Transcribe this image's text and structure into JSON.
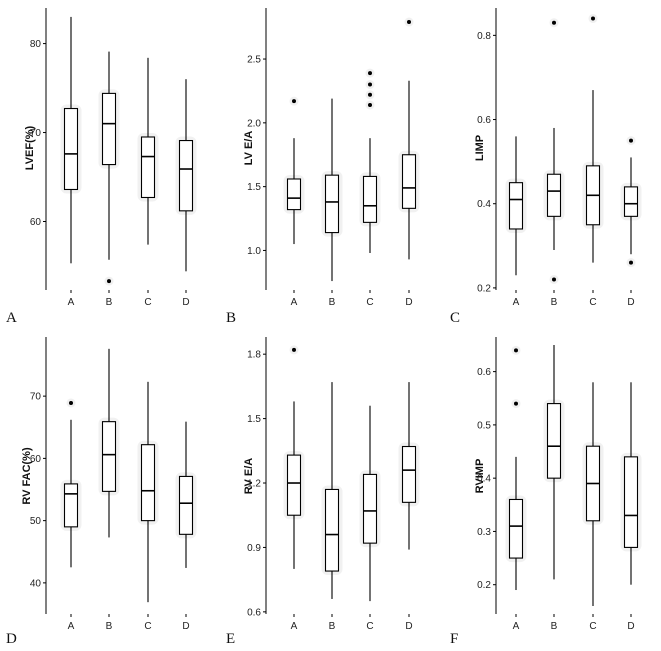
{
  "chart_data": [
    {
      "type": "box",
      "panel": "A",
      "ylabel": "LVEF(%)",
      "categories": [
        "A",
        "B",
        "C",
        "D"
      ],
      "yticks": [
        60,
        70,
        80
      ],
      "ylim": [
        52.3,
        84.0
      ],
      "boxes": [
        {
          "cat": "A",
          "whisker_low": 55.3,
          "q1": 63.6,
          "median": 67.6,
          "q3": 72.7,
          "whisker_high": 83.0,
          "outliers": []
        },
        {
          "cat": "B",
          "whisker_low": 55.7,
          "q1": 66.4,
          "median": 71.0,
          "q3": 74.4,
          "whisker_high": 79.1,
          "outliers": [
            53.3
          ]
        },
        {
          "cat": "C",
          "whisker_low": 57.4,
          "q1": 62.7,
          "median": 67.3,
          "q3": 69.5,
          "whisker_high": 78.4,
          "outliers": []
        },
        {
          "cat": "D",
          "whisker_low": 54.4,
          "q1": 61.2,
          "median": 65.9,
          "q3": 69.1,
          "whisker_high": 76.0,
          "outliers": []
        }
      ]
    },
    {
      "type": "box",
      "panel": "B",
      "ylabel": "LV E/A",
      "categories": [
        "A",
        "B",
        "C",
        "D"
      ],
      "yticks": [
        1.0,
        1.5,
        2.0,
        2.5
      ],
      "ytick_labels": [
        "1.0",
        "1.5",
        "2.0",
        "2.5"
      ],
      "ylim": [
        0.69,
        2.9
      ],
      "boxes": [
        {
          "cat": "A",
          "whisker_low": 1.05,
          "q1": 1.32,
          "median": 1.41,
          "q3": 1.56,
          "whisker_high": 1.88,
          "outliers": [
            2.17
          ]
        },
        {
          "cat": "B",
          "whisker_low": 0.76,
          "q1": 1.14,
          "median": 1.38,
          "q3": 1.59,
          "whisker_high": 2.19,
          "outliers": []
        },
        {
          "cat": "C",
          "whisker_low": 0.98,
          "q1": 1.22,
          "median": 1.35,
          "q3": 1.58,
          "whisker_high": 1.88,
          "outliers": [
            2.14,
            2.22,
            2.3,
            2.39
          ]
        },
        {
          "cat": "D",
          "whisker_low": 0.93,
          "q1": 1.33,
          "median": 1.49,
          "q3": 1.75,
          "whisker_high": 2.33,
          "outliers": [
            2.79
          ]
        }
      ]
    },
    {
      "type": "box",
      "panel": "C",
      "ylabel": "LIMP",
      "categories": [
        "A",
        "B",
        "C",
        "D"
      ],
      "yticks": [
        0.2,
        0.4,
        0.6,
        0.8
      ],
      "ytick_labels": [
        "0.2",
        "0.4",
        "0.6",
        "0.8"
      ],
      "ylim": [
        0.195,
        0.865
      ],
      "boxes": [
        {
          "cat": "A",
          "whisker_low": 0.23,
          "q1": 0.34,
          "median": 0.41,
          "q3": 0.45,
          "whisker_high": 0.56,
          "outliers": []
        },
        {
          "cat": "B",
          "whisker_low": 0.29,
          "q1": 0.37,
          "median": 0.43,
          "q3": 0.47,
          "whisker_high": 0.58,
          "outliers": [
            0.22,
            0.83
          ]
        },
        {
          "cat": "C",
          "whisker_low": 0.26,
          "q1": 0.35,
          "median": 0.42,
          "q3": 0.49,
          "whisker_high": 0.67,
          "outliers": [
            0.84
          ]
        },
        {
          "cat": "D",
          "whisker_low": 0.28,
          "q1": 0.37,
          "median": 0.4,
          "q3": 0.44,
          "whisker_high": 0.51,
          "outliers": [
            0.26,
            0.55
          ]
        }
      ]
    },
    {
      "type": "box",
      "panel": "D",
      "ylabel": "RV FAC(%)",
      "categories": [
        "A",
        "B",
        "C",
        "D"
      ],
      "yticks": [
        40,
        50,
        60,
        70
      ],
      "ylim": [
        35.0,
        79.5
      ],
      "boxes": [
        {
          "cat": "A",
          "whisker_low": 42.5,
          "q1": 49.0,
          "median": 54.3,
          "q3": 55.9,
          "whisker_high": 66.2,
          "outliers": [
            68.9
          ]
        },
        {
          "cat": "B",
          "whisker_low": 47.3,
          "q1": 54.7,
          "median": 60.6,
          "q3": 65.9,
          "whisker_high": 77.6,
          "outliers": []
        },
        {
          "cat": "C",
          "whisker_low": 36.9,
          "q1": 50.0,
          "median": 54.8,
          "q3": 62.2,
          "whisker_high": 72.3,
          "outliers": []
        },
        {
          "cat": "D",
          "whisker_low": 42.4,
          "q1": 47.8,
          "median": 52.8,
          "q3": 57.1,
          "whisker_high": 65.9,
          "outliers": []
        }
      ]
    },
    {
      "type": "box",
      "panel": "E",
      "ylabel": "RV E/A",
      "categories": [
        "A",
        "B",
        "C",
        "D"
      ],
      "yticks": [
        0.6,
        0.9,
        1.2,
        1.5,
        1.8
      ],
      "ytick_labels": [
        "0.6",
        "0.9",
        "1.2",
        "1.5",
        "1.8"
      ],
      "ylim": [
        0.59,
        1.88
      ],
      "boxes": [
        {
          "cat": "A",
          "whisker_low": 0.8,
          "q1": 1.05,
          "median": 1.2,
          "q3": 1.33,
          "whisker_high": 1.58,
          "outliers": [
            1.82
          ]
        },
        {
          "cat": "B",
          "whisker_low": 0.66,
          "q1": 0.79,
          "median": 0.96,
          "q3": 1.17,
          "whisker_high": 1.67,
          "outliers": []
        },
        {
          "cat": "C",
          "whisker_low": 0.65,
          "q1": 0.92,
          "median": 1.07,
          "q3": 1.24,
          "whisker_high": 1.56,
          "outliers": []
        },
        {
          "cat": "D",
          "whisker_low": 0.89,
          "q1": 1.11,
          "median": 1.26,
          "q3": 1.37,
          "whisker_high": 1.67,
          "outliers": []
        }
      ]
    },
    {
      "type": "box",
      "panel": "F",
      "ylabel": "RVIMP",
      "categories": [
        "A",
        "B",
        "C",
        "D"
      ],
      "yticks": [
        0.2,
        0.3,
        0.4,
        0.5,
        0.6
      ],
      "ytick_labels": [
        "0.2",
        "0.3",
        "0.4",
        "0.5",
        "0.6"
      ],
      "ylim": [
        0.145,
        0.665
      ],
      "boxes": [
        {
          "cat": "A",
          "whisker_low": 0.19,
          "q1": 0.25,
          "median": 0.31,
          "q3": 0.36,
          "whisker_high": 0.44,
          "outliers": [
            0.54,
            0.64
          ]
        },
        {
          "cat": "B",
          "whisker_low": 0.21,
          "q1": 0.4,
          "median": 0.46,
          "q3": 0.54,
          "whisker_high": 0.65,
          "outliers": []
        },
        {
          "cat": "C",
          "whisker_low": 0.16,
          "q1": 0.32,
          "median": 0.39,
          "q3": 0.46,
          "whisker_high": 0.58,
          "outliers": []
        },
        {
          "cat": "D",
          "whisker_low": 0.2,
          "q1": 0.27,
          "median": 0.33,
          "q3": 0.44,
          "whisker_high": 0.58,
          "outliers": []
        }
      ]
    }
  ],
  "panel_letters": [
    "A",
    "B",
    "C",
    "D",
    "E",
    "F"
  ],
  "colors": {
    "stroke": "#000000",
    "halo": "#e6e6e6",
    "background": "#ffffff"
  }
}
